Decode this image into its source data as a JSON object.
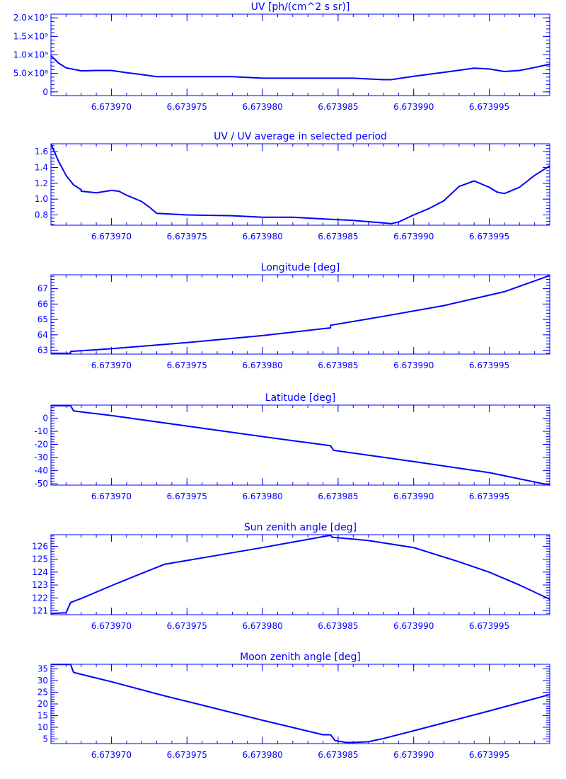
{
  "chart_data": [
    {
      "type": "line",
      "title": "UV [ph/(cm^2 s sr)]",
      "xlim": [
        6.673966,
        6.673999
      ],
      "x_tick_labels": [
        "6.673970",
        "6.673975",
        "6.673980",
        "6.673985",
        "6.673990",
        "6.673995"
      ],
      "x_tick_values": [
        6.67397,
        6.673975,
        6.67398,
        6.673985,
        6.67399,
        6.673995
      ],
      "ylim": [
        -0.1,
        2.1
      ],
      "y_tick_labels": [
        "0",
        "5.0×10⁸",
        "1.0×10⁹",
        "1.5×10⁹",
        "2.0×10⁹"
      ],
      "y_tick_values": [
        0,
        0.5,
        1.0,
        1.5,
        2.0
      ],
      "series": [
        {
          "color": "#0000ff",
          "x": [
            6.673966,
            6.6739665,
            6.673967,
            6.673968,
            6.673969,
            6.67397,
            6.673971,
            6.673972,
            6.673973,
            6.673975,
            6.673978,
            6.67398,
            6.673982,
            6.673984,
            6.673986,
            6.673988,
            6.6739885,
            6.67399,
            6.673992,
            6.673994,
            6.673995,
            6.673996,
            6.673997,
            6.673998,
            6.673999
          ],
          "y": [
            0.98,
            0.78,
            0.65,
            0.57,
            0.58,
            0.58,
            0.52,
            0.47,
            0.41,
            0.41,
            0.41,
            0.37,
            0.37,
            0.37,
            0.37,
            0.33,
            0.33,
            0.42,
            0.53,
            0.64,
            0.62,
            0.55,
            0.58,
            0.66,
            0.75
          ]
        }
      ]
    },
    {
      "type": "line",
      "title": "UV / UV average in selected period",
      "xlim": [
        6.673966,
        6.673999
      ],
      "x_tick_labels": [
        "6.673970",
        "6.673975",
        "6.673980",
        "6.673985",
        "6.673990",
        "6.673995"
      ],
      "x_tick_values": [
        6.67397,
        6.673975,
        6.67398,
        6.673985,
        6.67399,
        6.673995
      ],
      "ylim": [
        0.67,
        1.7
      ],
      "y_tick_labels": [
        "0.8",
        "1.0",
        "1.2",
        "1.4",
        "1.6"
      ],
      "y_tick_values": [
        0.8,
        1.0,
        1.2,
        1.4,
        1.6
      ],
      "series": [
        {
          "color": "#0000ff",
          "x": [
            6.673966,
            6.6739665,
            6.673967,
            6.6739675,
            6.673968,
            6.673968,
            6.673969,
            6.67397,
            6.6739705,
            6.673971,
            6.673972,
            6.6739725,
            6.673973,
            6.673975,
            6.673978,
            6.67398,
            6.673982,
            6.673984,
            6.673986,
            6.673988,
            6.6739885,
            6.673989,
            6.67399,
            6.673991,
            6.673992,
            6.673993,
            6.673994,
            6.673995,
            6.6739955,
            6.673996,
            6.673997,
            6.673998,
            6.673999
          ],
          "y": [
            1.7,
            1.48,
            1.3,
            1.18,
            1.12,
            1.1,
            1.08,
            1.11,
            1.1,
            1.05,
            0.97,
            0.9,
            0.82,
            0.8,
            0.79,
            0.77,
            0.77,
            0.75,
            0.73,
            0.7,
            0.69,
            0.71,
            0.8,
            0.88,
            0.98,
            1.16,
            1.23,
            1.15,
            1.09,
            1.07,
            1.15,
            1.3,
            1.42
          ]
        }
      ]
    },
    {
      "type": "line",
      "title": "Longitude [deg]",
      "xlim": [
        6.673966,
        6.673999
      ],
      "x_tick_labels": [
        "6.673970",
        "6.673975",
        "6.673980",
        "6.673985",
        "6.673990",
        "6.673995"
      ],
      "x_tick_values": [
        6.67397,
        6.673975,
        6.67398,
        6.673985,
        6.67399,
        6.673995
      ],
      "ylim": [
        62.75,
        67.9
      ],
      "y_tick_labels": [
        "63",
        "64",
        "65",
        "66",
        "67"
      ],
      "y_tick_values": [
        63,
        64,
        65,
        66,
        67
      ],
      "series": [
        {
          "color": "#0000ff",
          "x": [
            6.673966,
            6.6739673,
            6.6739673,
            6.67397,
            6.673975,
            6.67398,
            6.673984,
            6.6739845,
            6.6739845,
            6.673988,
            6.673992,
            6.673996,
            6.673999
          ],
          "y": [
            62.8,
            62.8,
            62.92,
            63.1,
            63.5,
            63.95,
            64.4,
            64.45,
            64.62,
            65.2,
            65.9,
            66.8,
            67.85
          ]
        }
      ]
    },
    {
      "type": "line",
      "title": "Latitude [deg]",
      "xlim": [
        6.673966,
        6.673999
      ],
      "x_tick_labels": [
        "6.673970",
        "6.673975",
        "6.673980",
        "6.673985",
        "6.673990",
        "6.673995"
      ],
      "x_tick_values": [
        6.67397,
        6.673975,
        6.67398,
        6.673985,
        6.67399,
        6.673995
      ],
      "ylim": [
        -51,
        10
      ],
      "y_tick_labels": [
        "0",
        "-10",
        "-20",
        "-30",
        "-40",
        "-50"
      ],
      "y_tick_values": [
        0,
        -10,
        -20,
        -30,
        -40,
        -50
      ],
      "series": [
        {
          "color": "#0000ff",
          "x": [
            6.673966,
            6.6739673,
            6.6739675,
            6.67397,
            6.673975,
            6.67398,
            6.6739845,
            6.6739847,
            6.67399,
            6.673995,
            6.673999
          ],
          "y": [
            9.5,
            9.5,
            5.5,
            2.0,
            -6.0,
            -14.0,
            -21.0,
            -24.5,
            -33.0,
            -41.5,
            -51.0
          ]
        }
      ]
    },
    {
      "type": "line",
      "title": "Sun zenith angle [deg]",
      "xlim": [
        6.673966,
        6.673999
      ],
      "x_tick_labels": [
        "6.673970",
        "6.673975",
        "6.673980",
        "6.673985",
        "6.673990",
        "6.673995"
      ],
      "x_tick_values": [
        6.67397,
        6.673975,
        6.67398,
        6.673985,
        6.67399,
        6.673995
      ],
      "ylim": [
        120.7,
        126.9
      ],
      "y_tick_labels": [
        "121",
        "122",
        "123",
        "124",
        "125",
        "126"
      ],
      "y_tick_values": [
        121,
        122,
        123,
        124,
        125,
        126
      ],
      "series": [
        {
          "color": "#0000ff",
          "x": [
            6.673966,
            6.673967,
            6.6739673,
            6.673968,
            6.67397,
            6.673972,
            6.6739735,
            6.673976,
            6.67398,
            6.6739845,
            6.6739846,
            6.673987,
            6.67399,
            6.673993,
            6.673995,
            6.673997,
            6.673999
          ],
          "y": [
            120.8,
            120.85,
            121.65,
            121.95,
            122.95,
            123.9,
            124.6,
            125.1,
            125.9,
            126.85,
            126.7,
            126.45,
            125.9,
            124.8,
            124.0,
            123.0,
            121.9
          ]
        }
      ]
    },
    {
      "type": "line",
      "title": "Moon zenith angle [deg]",
      "xlim": [
        6.673966,
        6.673999
      ],
      "x_tick_labels": [
        "6.673970",
        "6.673975",
        "6.673980",
        "6.673985",
        "6.673990",
        "6.673995"
      ],
      "x_tick_values": [
        6.67397,
        6.673975,
        6.67398,
        6.673985,
        6.67399,
        6.673995
      ],
      "ylim": [
        3.0,
        37.0
      ],
      "y_tick_labels": [
        "5",
        "10",
        "15",
        "20",
        "25",
        "30",
        "35"
      ],
      "y_tick_values": [
        5,
        10,
        15,
        20,
        25,
        30,
        35
      ],
      "series": [
        {
          "color": "#0000ff",
          "x": [
            6.673966,
            6.6739673,
            6.6739675,
            6.67397,
            6.6739735,
            6.673976,
            6.67398,
            6.673984,
            6.6739845,
            6.6739848,
            6.6739855,
            6.673986,
            6.673987,
            6.673988,
            6.67399,
            6.673995,
            6.673999
          ],
          "y": [
            36.9,
            36.9,
            33.5,
            29.5,
            23.5,
            19.5,
            13.0,
            6.8,
            6.8,
            4.3,
            3.5,
            3.5,
            3.8,
            5.2,
            8.5,
            17.0,
            24.0
          ]
        }
      ]
    }
  ]
}
